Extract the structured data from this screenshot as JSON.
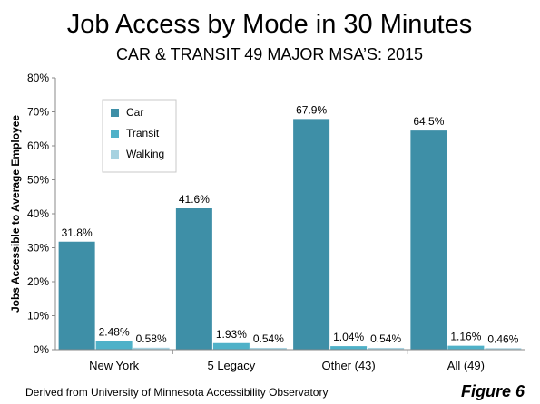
{
  "figure": {
    "title": "Job Access by Mode in 30 Minutes",
    "subtitle": "CAR & TRANSIT 49 MAJOR MSA’S: 2015",
    "source": "Derived from University of Minnesota Accessibility Observatory",
    "figure_label": "Figure 6"
  },
  "chart_data": {
    "type": "bar",
    "title": "Job Access by Mode in 30 Minutes",
    "subtitle": "CAR & TRANSIT 49 MAJOR MSA’S: 2015",
    "xlabel": "",
    "ylabel": "Jobs Accessible to Average Employee",
    "ylim": [
      0,
      80
    ],
    "yticks": [
      0,
      10,
      20,
      30,
      40,
      50,
      60,
      70,
      80
    ],
    "ytick_labels": [
      "0%",
      "10%",
      "20%",
      "30%",
      "40%",
      "50%",
      "60%",
      "70%",
      "80%"
    ],
    "categories": [
      "New York",
      "5 Legacy",
      "Other (43)",
      "All (49)"
    ],
    "series": [
      {
        "name": "Car",
        "color": "#3e8fa7",
        "values": [
          31.8,
          41.6,
          67.9,
          64.5
        ],
        "labels": [
          "31.8%",
          "41.6%",
          "67.9%",
          "64.5%"
        ]
      },
      {
        "name": "Transit",
        "color": "#4fb1c8",
        "values": [
          2.48,
          1.93,
          1.04,
          1.16
        ],
        "labels": [
          "2.48%",
          "1.93%",
          "1.04%",
          "1.16%"
        ]
      },
      {
        "name": "Walking",
        "color": "#a7d2e0",
        "values": [
          0.58,
          0.54,
          0.54,
          0.46
        ],
        "labels": [
          "0.58%",
          "0.54%",
          "0.54%",
          "0.46%"
        ]
      }
    ],
    "grid": false,
    "legend_position": "top-left"
  }
}
